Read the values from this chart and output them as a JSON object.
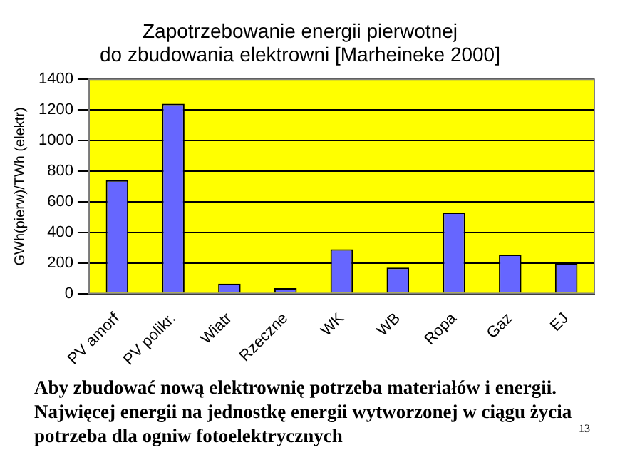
{
  "chart_data": {
    "type": "bar",
    "title": "Zapotrzebowanie energii pierwotnej\ndo zbudowania elektrowni [Marheineke 2000]",
    "ylabel": "GWh(pierw)/TWh (elektr)",
    "categories": [
      "PV amorf",
      "PV polikr.",
      "Wiatr",
      "Rzeczne",
      "WK",
      "WB",
      "Ropa",
      "Gaz",
      "EJ"
    ],
    "values": [
      740,
      1240,
      65,
      35,
      290,
      170,
      530,
      255,
      195
    ],
    "color": "#6666ff",
    "ylim": [
      0,
      1400
    ],
    "yticks": [
      0,
      200,
      400,
      600,
      800,
      1000,
      1200,
      1400
    ],
    "grid": "y",
    "annotations": [
      "Aby zbudować nową elektrownię potrzeba materiałów i energii.\nNajwięcej energii na jednostkę energii wytworzonej w ciągu życia\npotrzeba dla ogniw fotoelektrycznych",
      "13"
    ]
  }
}
